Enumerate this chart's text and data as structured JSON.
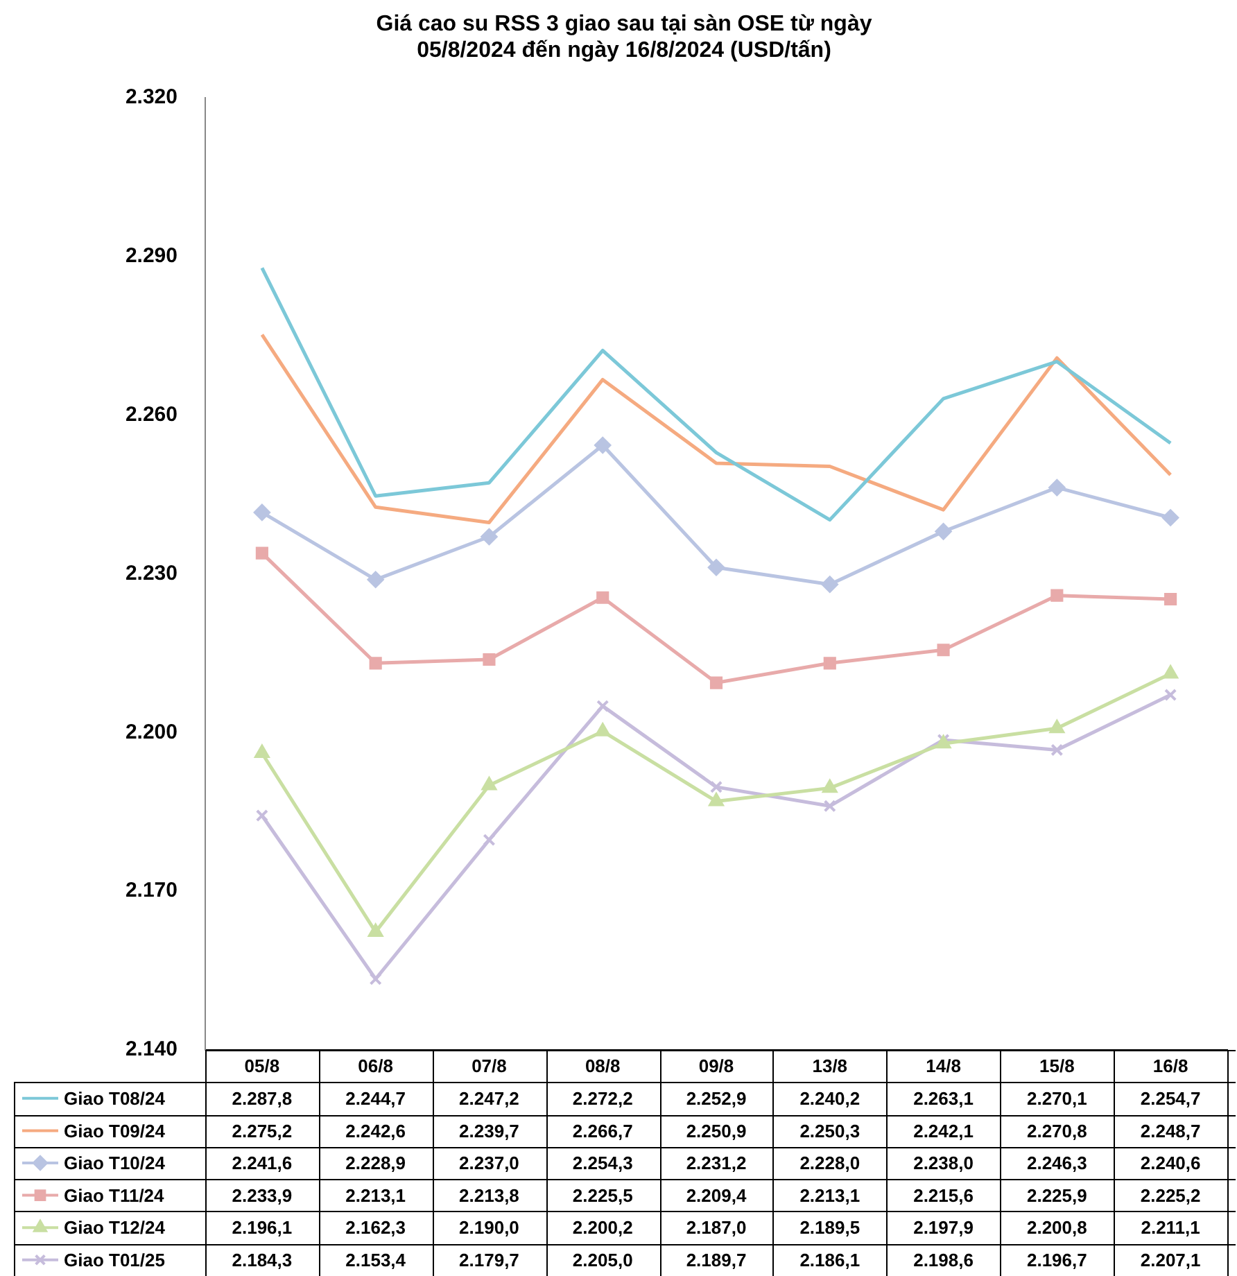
{
  "chart_data": {
    "type": "line",
    "title": "Giá cao su RSS 3 giao sau tại sàn OSE từ ngày 05/8/2024 đến ngày 16/8/2024 (USD/tấn)",
    "categories": [
      "05/8",
      "06/8",
      "07/8",
      "08/8",
      "09/8",
      "13/8",
      "14/8",
      "15/8",
      "16/8"
    ],
    "ylim": [
      2140,
      2320
    ],
    "yticks": [
      {
        "value": 2140,
        "label": "2.140"
      },
      {
        "value": 2170,
        "label": "2.170"
      },
      {
        "value": 2200,
        "label": "2.200"
      },
      {
        "value": 2230,
        "label": "2.230"
      },
      {
        "value": 2260,
        "label": "2.260"
      },
      {
        "value": 2290,
        "label": "2.290"
      },
      {
        "value": 2320,
        "label": "2.320"
      }
    ],
    "grid": false,
    "legend": "bottom",
    "series": [
      {
        "name": "Giao T08/24",
        "color": "#7cc8d8",
        "marker": "none",
        "values": [
          2287.8,
          2244.7,
          2247.2,
          2272.2,
          2252.9,
          2240.2,
          2263.1,
          2270.1,
          2254.7
        ],
        "value_labels": [
          "2.287,8",
          "2.244,7",
          "2.247,2",
          "2.272,2",
          "2.252,9",
          "2.240,2",
          "2.263,1",
          "2.270,1",
          "2.254,7"
        ]
      },
      {
        "name": "Giao T09/24",
        "color": "#f5aa80",
        "marker": "none",
        "values": [
          2275.2,
          2242.6,
          2239.7,
          2266.7,
          2250.9,
          2250.3,
          2242.1,
          2270.8,
          2248.7
        ],
        "value_labels": [
          "2.275,2",
          "2.242,6",
          "2.239,7",
          "2.266,7",
          "2.250,9",
          "2.250,3",
          "2.242,1",
          "2.270,8",
          "2.248,7"
        ]
      },
      {
        "name": "Giao T10/24",
        "color": "#b9c4e2",
        "marker": "diamond",
        "values": [
          2241.6,
          2228.9,
          2237.0,
          2254.3,
          2231.2,
          2228.0,
          2238.0,
          2246.3,
          2240.6
        ],
        "value_labels": [
          "2.241,6",
          "2.228,9",
          "2.237,0",
          "2.254,3",
          "2.231,2",
          "2.228,0",
          "2.238,0",
          "2.246,3",
          "2.240,6"
        ]
      },
      {
        "name": "Giao T11/24",
        "color": "#e8aaaa",
        "marker": "square",
        "values": [
          2233.9,
          2213.1,
          2213.8,
          2225.5,
          2209.4,
          2213.1,
          2215.6,
          2225.9,
          2225.2
        ],
        "value_labels": [
          "2.233,9",
          "2.213,1",
          "2.213,8",
          "2.225,5",
          "2.209,4",
          "2.213,1",
          "2.215,6",
          "2.225,9",
          "2.225,2"
        ]
      },
      {
        "name": "Giao T12/24",
        "color": "#c9dfa2",
        "marker": "triangle",
        "values": [
          2196.1,
          2162.3,
          2190.0,
          2200.2,
          2187.0,
          2189.5,
          2197.9,
          2200.8,
          2211.1
        ],
        "value_labels": [
          "2.196,1",
          "2.162,3",
          "2.190,0",
          "2.200,2",
          "2.187,0",
          "2.189,5",
          "2.197,9",
          "2.200,8",
          "2.211,1"
        ]
      },
      {
        "name": "Giao T01/25",
        "color": "#c6bcdc",
        "marker": "cross",
        "values": [
          2184.3,
          2153.4,
          2179.7,
          2205.0,
          2189.7,
          2186.1,
          2198.6,
          2196.7,
          2207.1
        ],
        "value_labels": [
          "2.184,3",
          "2.153,4",
          "2.179,7",
          "2.205,0",
          "2.189,7",
          "2.186,1",
          "2.198,6",
          "2.196,7",
          "2.207,1"
        ]
      }
    ]
  }
}
